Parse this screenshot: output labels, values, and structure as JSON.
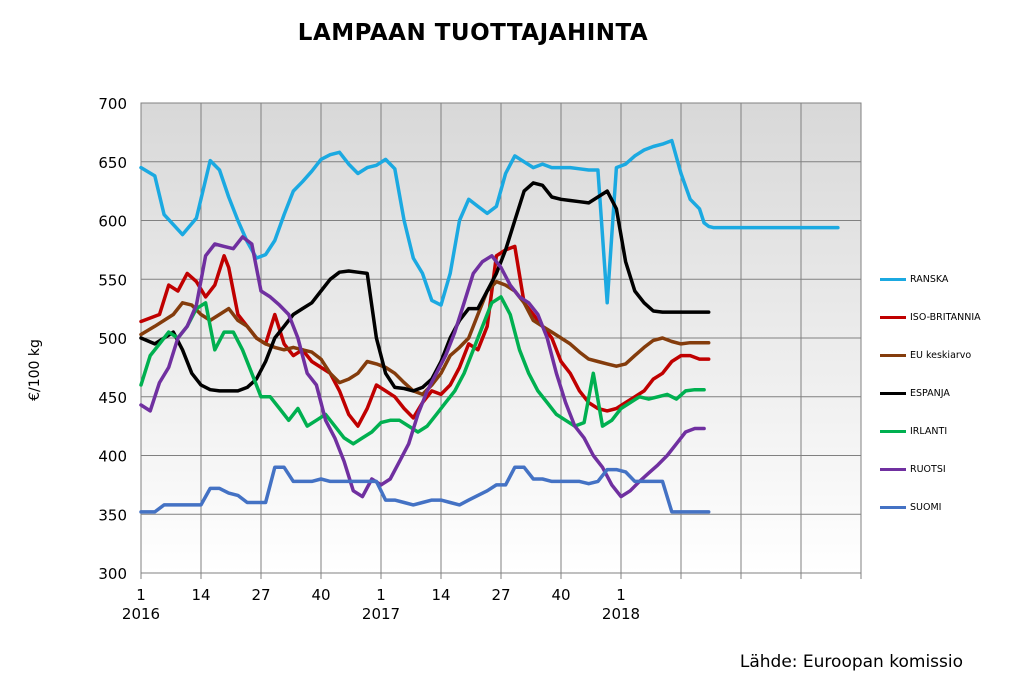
{
  "chart_data": {
    "type": "line",
    "title": "LAMPAAN TUOTTAJAHINTA",
    "ylabel": "€/100 kg",
    "xlabel": "",
    "source": "Lähde: Euroopan komissio",
    "ylim": [
      300,
      700
    ],
    "yticks": [
      300,
      350,
      400,
      450,
      500,
      550,
      600,
      650,
      700
    ],
    "x_week_ticks": [
      "1",
      "14",
      "27",
      "40",
      "1",
      "14",
      "27",
      "40",
      "1"
    ],
    "x_year_ticks": [
      "2016",
      "2017",
      "2018"
    ],
    "x_range_weeks": [
      0,
      156
    ],
    "x_unit": "weeks since week 1 of 2016",
    "grid": true,
    "legend_position": "right",
    "series": [
      {
        "name": "RANSKA",
        "color": "#1ba9e1",
        "x": [
          0,
          3,
          5,
          9,
          12,
          15,
          17,
          19,
          21,
          23,
          25,
          27,
          29,
          31,
          33,
          35,
          37,
          39,
          41,
          43,
          45,
          47,
          49,
          51,
          53,
          55,
          57,
          59,
          61,
          63,
          65,
          67,
          69,
          71,
          73,
          75,
          77,
          79,
          81,
          83,
          85,
          87,
          89,
          91,
          93,
          95,
          97,
          99,
          101,
          103,
          105,
          107,
          109,
          111,
          113,
          115,
          117,
          119,
          121,
          122,
          123,
          124,
          125,
          127,
          129,
          131,
          133,
          135,
          137,
          139,
          141,
          143,
          145,
          148,
          151
        ],
        "y": [
          645,
          638,
          605,
          588,
          602,
          651,
          643,
          620,
          600,
          582,
          568,
          571,
          583,
          605,
          625,
          633,
          642,
          652,
          656,
          658,
          648,
          640,
          645,
          647,
          652,
          644,
          600,
          568,
          555,
          532,
          528,
          555,
          600,
          618,
          612,
          606,
          612,
          640,
          655,
          650,
          645,
          648,
          645,
          645,
          645,
          644,
          643,
          643,
          530,
          645,
          648,
          655,
          660,
          663,
          665,
          668,
          640,
          618,
          610,
          598,
          595,
          594,
          594,
          594,
          594,
          594,
          594,
          594,
          594,
          594,
          594,
          594,
          594,
          594,
          594
        ]
      },
      {
        "name": "ISO-BRITANNIA",
        "color": "#c00000",
        "x": [
          0,
          4,
          6,
          8,
          10,
          12,
          14,
          16,
          18,
          19,
          21,
          23,
          25,
          27,
          29,
          31,
          33,
          35,
          37,
          39,
          41,
          43,
          45,
          47,
          49,
          51,
          53,
          55,
          57,
          59,
          61,
          63,
          65,
          67,
          69,
          71,
          73,
          75,
          77,
          79,
          81,
          83,
          85,
          87,
          89,
          91,
          93,
          95,
          97,
          99,
          101,
          103,
          105,
          107,
          109,
          111,
          113,
          115,
          117,
          119,
          121,
          123
        ],
        "y": [
          514,
          520,
          545,
          540,
          555,
          548,
          535,
          545,
          570,
          560,
          520,
          510,
          500,
          495,
          520,
          495,
          485,
          490,
          480,
          475,
          470,
          455,
          435,
          425,
          440,
          460,
          455,
          450,
          440,
          432,
          445,
          455,
          452,
          460,
          475,
          495,
          490,
          510,
          570,
          575,
          578,
          530,
          520,
          510,
          500,
          480,
          470,
          455,
          445,
          440,
          438,
          440,
          445,
          450,
          455,
          465,
          470,
          480,
          485,
          485,
          482,
          482
        ]
      },
      {
        "name": "EU keskiarvo",
        "color": "#843c0c",
        "x": [
          0,
          3,
          5,
          7,
          9,
          11,
          13,
          15,
          17,
          19,
          21,
          23,
          25,
          27,
          29,
          31,
          33,
          35,
          37,
          39,
          41,
          43,
          45,
          47,
          49,
          51,
          53,
          55,
          57,
          59,
          61,
          63,
          65,
          67,
          69,
          71,
          73,
          75,
          77,
          79,
          81,
          83,
          85,
          87,
          89,
          91,
          93,
          95,
          97,
          99,
          101,
          103,
          105,
          107,
          109,
          111,
          113,
          115,
          117,
          119,
          121,
          123
        ],
        "y": [
          503,
          510,
          515,
          520,
          530,
          528,
          520,
          515,
          520,
          525,
          515,
          510,
          500,
          495,
          492,
          490,
          492,
          490,
          488,
          482,
          470,
          462,
          465,
          470,
          480,
          478,
          475,
          470,
          462,
          455,
          452,
          460,
          470,
          485,
          492,
          500,
          520,
          540,
          548,
          545,
          540,
          530,
          515,
          510,
          505,
          500,
          495,
          488,
          482,
          480,
          478,
          476,
          478,
          485,
          492,
          498,
          500,
          497,
          495,
          496,
          496,
          496
        ]
      },
      {
        "name": "ESPANJA",
        "color": "#000000",
        "x": [
          0,
          3,
          5,
          7,
          9,
          11,
          13,
          15,
          17,
          19,
          21,
          23,
          25,
          27,
          29,
          31,
          33,
          35,
          37,
          39,
          41,
          43,
          45,
          47,
          49,
          51,
          53,
          55,
          57,
          59,
          61,
          63,
          65,
          67,
          69,
          71,
          73,
          75,
          77,
          79,
          81,
          83,
          85,
          87,
          89,
          91,
          93,
          95,
          97,
          99,
          101,
          103,
          105,
          107,
          109,
          111,
          113,
          115,
          117,
          119,
          121,
          123
        ],
        "y": [
          500,
          495,
          500,
          505,
          490,
          470,
          460,
          456,
          455,
          455,
          455,
          458,
          465,
          480,
          500,
          510,
          520,
          525,
          530,
          540,
          550,
          556,
          557,
          556,
          555,
          500,
          470,
          458,
          457,
          455,
          458,
          465,
          480,
          500,
          515,
          525,
          525,
          540,
          555,
          575,
          600,
          625,
          632,
          630,
          620,
          618,
          617,
          616,
          615,
          620,
          625,
          610,
          565,
          540,
          530,
          523,
          522,
          522,
          522,
          522,
          522,
          522
        ]
      },
      {
        "name": "IRLANTI",
        "color": "#00b050",
        "x": [
          0,
          2,
          4,
          6,
          8,
          10,
          12,
          14,
          16,
          18,
          20,
          22,
          24,
          26,
          28,
          30,
          32,
          34,
          36,
          38,
          40,
          42,
          44,
          46,
          48,
          50,
          52,
          54,
          56,
          58,
          60,
          62,
          64,
          66,
          68,
          70,
          72,
          74,
          76,
          78,
          80,
          82,
          84,
          86,
          88,
          90,
          92,
          94,
          96,
          98,
          100,
          102,
          104,
          106,
          108,
          110,
          112,
          114,
          116,
          118,
          120,
          122
        ],
        "y": [
          460,
          485,
          495,
          505,
          500,
          510,
          525,
          530,
          490,
          505,
          505,
          490,
          470,
          450,
          450,
          440,
          430,
          440,
          425,
          430,
          435,
          425,
          415,
          410,
          415,
          420,
          428,
          430,
          430,
          425,
          420,
          425,
          435,
          445,
          455,
          470,
          490,
          510,
          530,
          535,
          520,
          490,
          470,
          455,
          445,
          435,
          430,
          425,
          428,
          470,
          425,
          430,
          440,
          445,
          450,
          448,
          450,
          452,
          448,
          455,
          456,
          456
        ]
      },
      {
        "name": "RUOTSI",
        "color": "#7030a0",
        "x": [
          0,
          2,
          4,
          6,
          8,
          10,
          12,
          14,
          16,
          18,
          20,
          22,
          24,
          26,
          28,
          30,
          32,
          34,
          36,
          38,
          40,
          42,
          44,
          46,
          48,
          50,
          52,
          54,
          56,
          58,
          60,
          62,
          64,
          66,
          68,
          70,
          72,
          74,
          76,
          78,
          80,
          82,
          84,
          86,
          88,
          90,
          92,
          94,
          96,
          98,
          100,
          102,
          104,
          106,
          108,
          110,
          112,
          114,
          116,
          118,
          120,
          122
        ],
        "y": [
          443,
          438,
          462,
          475,
          500,
          510,
          528,
          570,
          580,
          578,
          576,
          586,
          580,
          540,
          535,
          528,
          520,
          500,
          470,
          460,
          430,
          415,
          395,
          370,
          365,
          380,
          375,
          380,
          395,
          410,
          435,
          455,
          470,
          485,
          505,
          530,
          555,
          565,
          570,
          560,
          545,
          535,
          530,
          520,
          500,
          470,
          445,
          425,
          415,
          400,
          390,
          375,
          365,
          370,
          378,
          385,
          392,
          400,
          410,
          420,
          423,
          423
        ]
      },
      {
        "name": "SUOMI",
        "color": "#4472c4",
        "x": [
          0,
          3,
          5,
          7,
          9,
          11,
          13,
          15,
          17,
          19,
          21,
          23,
          25,
          27,
          29,
          31,
          33,
          35,
          37,
          39,
          41,
          43,
          45,
          47,
          49,
          51,
          53,
          55,
          57,
          59,
          61,
          63,
          65,
          67,
          69,
          71,
          73,
          75,
          77,
          79,
          81,
          83,
          85,
          87,
          89,
          91,
          93,
          95,
          97,
          99,
          101,
          103,
          105,
          107,
          109,
          111,
          113,
          115,
          117,
          119,
          121,
          123
        ],
        "y": [
          352,
          352,
          358,
          358,
          358,
          358,
          358,
          372,
          372,
          368,
          366,
          360,
          360,
          360,
          390,
          390,
          378,
          378,
          378,
          380,
          378,
          378,
          378,
          378,
          378,
          378,
          362,
          362,
          360,
          358,
          360,
          362,
          362,
          360,
          358,
          362,
          366,
          370,
          375,
          375,
          390,
          390,
          380,
          380,
          378,
          378,
          378,
          378,
          376,
          378,
          388,
          388,
          386,
          378,
          378,
          378,
          378,
          352,
          352,
          352,
          352,
          352
        ]
      }
    ]
  }
}
